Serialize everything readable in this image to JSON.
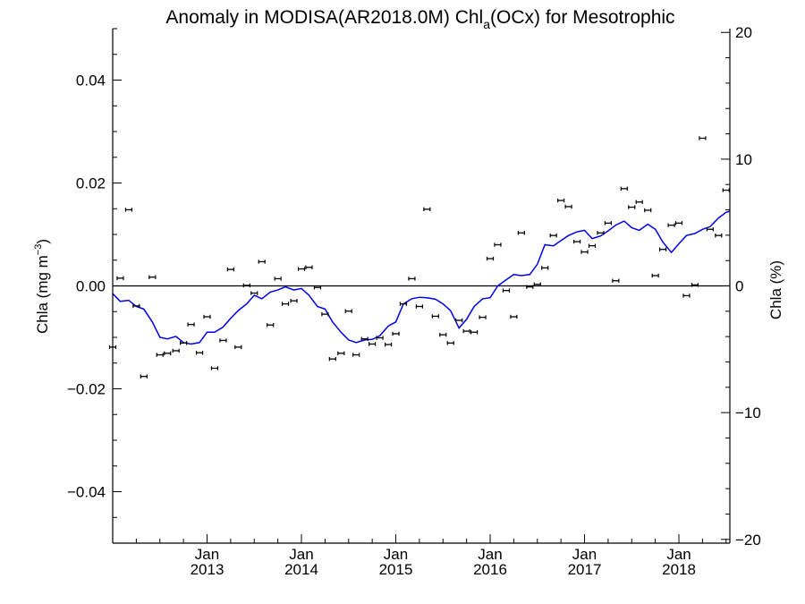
{
  "chart_data": {
    "type": "line",
    "title_main": "Anomaly in MODISA(AR2018.0M) Chl",
    "title_sub": "a",
    "title_tail": "(OCx) for Mesotrophic",
    "ylabel_main": "Chla (mg m",
    "ylabel_sup": "−3",
    "ylabel_close": ")",
    "y2label": "Chla (%)",
    "ylim": [
      -0.05,
      0.05
    ],
    "y2lim": [
      -20.3,
      20.3
    ],
    "yticks": [
      {
        "value": 0.04,
        "label": "0.04"
      },
      {
        "value": 0.02,
        "label": "0.02"
      },
      {
        "value": 0.0,
        "label": "0.00"
      },
      {
        "value": -0.02,
        "label": "−0.02"
      },
      {
        "value": -0.04,
        "label": "−0.04"
      }
    ],
    "y2ticks": [
      {
        "value": 20,
        "label": "20"
      },
      {
        "value": 10,
        "label": "10"
      },
      {
        "value": 0,
        "label": "0"
      },
      {
        "value": -10,
        "label": "−10"
      },
      {
        "value": -20,
        "label": "−20"
      }
    ],
    "xlim": [
      2012.0,
      2018.54
    ],
    "xticks": [
      {
        "value": 2013.0,
        "month": "Jan",
        "year": "2013"
      },
      {
        "value": 2014.0,
        "month": "Jan",
        "year": "2014"
      },
      {
        "value": 2015.0,
        "month": "Jan",
        "year": "2015"
      },
      {
        "value": 2016.0,
        "month": "Jan",
        "year": "2016"
      },
      {
        "value": 2017.0,
        "month": "Jan",
        "year": "2017"
      },
      {
        "value": 2018.0,
        "month": "Jan",
        "year": "2018"
      }
    ],
    "colors": {
      "line": "#0000ee",
      "points": "#000000",
      "zero_line": "#000000"
    },
    "monthly_anomaly": [
      [
        2012.0,
        -0.0119
      ],
      [
        2012.08,
        0.0015
      ],
      [
        2012.17,
        0.0148
      ],
      [
        2012.25,
        -0.0039
      ],
      [
        2012.33,
        -0.0176
      ],
      [
        2012.42,
        0.0017
      ],
      [
        2012.5,
        -0.0134
      ],
      [
        2012.58,
        -0.0131
      ],
      [
        2012.67,
        -0.0126
      ],
      [
        2012.75,
        -0.0111
      ],
      [
        2012.83,
        -0.0075
      ],
      [
        2012.92,
        -0.013
      ],
      [
        2013.0,
        -0.006
      ],
      [
        2013.08,
        -0.016
      ],
      [
        2013.17,
        -0.0106
      ],
      [
        2013.25,
        0.0032
      ],
      [
        2013.33,
        -0.0119
      ],
      [
        2013.42,
        0.0001
      ],
      [
        2013.5,
        -0.0014
      ],
      [
        2013.58,
        0.0047
      ],
      [
        2013.67,
        -0.0076
      ],
      [
        2013.75,
        0.0014
      ],
      [
        2013.83,
        -0.0035
      ],
      [
        2013.92,
        -0.0029
      ],
      [
        2014.0,
        0.0033
      ],
      [
        2014.08,
        0.0036
      ],
      [
        2014.17,
        -0.0003
      ],
      [
        2014.25,
        -0.0055
      ],
      [
        2014.33,
        -0.0142
      ],
      [
        2014.42,
        -0.0131
      ],
      [
        2014.5,
        -0.0049
      ],
      [
        2014.58,
        -0.0134
      ],
      [
        2014.67,
        -0.0103
      ],
      [
        2014.75,
        -0.0113
      ],
      [
        2014.83,
        -0.0101
      ],
      [
        2014.92,
        -0.0114
      ],
      [
        2015.0,
        -0.0093
      ],
      [
        2015.08,
        -0.0035
      ],
      [
        2015.17,
        0.0014
      ],
      [
        2015.25,
        -0.004
      ],
      [
        2015.33,
        0.0149
      ],
      [
        2015.42,
        -0.0059
      ],
      [
        2015.5,
        -0.0095
      ],
      [
        2015.58,
        -0.0111
      ],
      [
        2015.67,
        -0.0067
      ],
      [
        2015.75,
        -0.0088
      ],
      [
        2015.83,
        -0.009
      ],
      [
        2015.92,
        -0.0061
      ],
      [
        2016.0,
        0.0053
      ],
      [
        2016.08,
        0.008
      ],
      [
        2016.17,
        -0.0009
      ],
      [
        2016.25,
        -0.006
      ],
      [
        2016.33,
        0.0103
      ],
      [
        2016.42,
        -0.0002
      ],
      [
        2016.5,
        0.0003
      ],
      [
        2016.58,
        0.0035
      ],
      [
        2016.67,
        0.0098
      ],
      [
        2016.75,
        0.0166
      ],
      [
        2016.83,
        0.0154
      ],
      [
        2016.92,
        0.0086
      ],
      [
        2017.0,
        0.0066
      ],
      [
        2017.08,
        0.0078
      ],
      [
        2017.17,
        0.0103
      ],
      [
        2017.25,
        0.0122
      ],
      [
        2017.33,
        0.001
      ],
      [
        2017.42,
        0.0189
      ],
      [
        2017.5,
        0.0153
      ],
      [
        2017.58,
        0.0163
      ],
      [
        2017.67,
        0.0147
      ],
      [
        2017.75,
        0.002
      ],
      [
        2017.83,
        0.0071
      ],
      [
        2017.92,
        0.0118
      ],
      [
        2018.0,
        0.0122
      ],
      [
        2018.08,
        -0.0019
      ],
      [
        2018.17,
        0.0002
      ],
      [
        2018.25,
        0.0287
      ],
      [
        2018.33,
        0.011
      ],
      [
        2018.42,
        0.0098
      ],
      [
        2018.5,
        0.0186
      ]
    ],
    "running_mean": [
      [
        2012.0,
        -0.0015
      ],
      [
        2012.08,
        -0.003
      ],
      [
        2012.17,
        -0.0028
      ],
      [
        2012.25,
        -0.004
      ],
      [
        2012.33,
        -0.0045
      ],
      [
        2012.42,
        -0.007
      ],
      [
        2012.5,
        -0.01
      ],
      [
        2012.58,
        -0.0103
      ],
      [
        2012.67,
        -0.0098
      ],
      [
        2012.75,
        -0.011
      ],
      [
        2012.83,
        -0.0113
      ],
      [
        2012.92,
        -0.011
      ],
      [
        2013.0,
        -0.009
      ],
      [
        2013.08,
        -0.009
      ],
      [
        2013.17,
        -0.008
      ],
      [
        2013.25,
        -0.0063
      ],
      [
        2013.33,
        -0.0048
      ],
      [
        2013.42,
        -0.0035
      ],
      [
        2013.5,
        -0.0018
      ],
      [
        2013.58,
        -0.0025
      ],
      [
        2013.67,
        -0.0012
      ],
      [
        2013.75,
        -0.0008
      ],
      [
        2013.83,
        -0.0002
      ],
      [
        2013.92,
        -0.0008
      ],
      [
        2014.0,
        -0.0005
      ],
      [
        2014.08,
        -0.0018
      ],
      [
        2014.17,
        -0.004
      ],
      [
        2014.25,
        -0.0045
      ],
      [
        2014.33,
        -0.007
      ],
      [
        2014.42,
        -0.009
      ],
      [
        2014.5,
        -0.0105
      ],
      [
        2014.58,
        -0.011
      ],
      [
        2014.67,
        -0.0105
      ],
      [
        2014.75,
        -0.0104
      ],
      [
        2014.83,
        -0.0097
      ],
      [
        2014.92,
        -0.0078
      ],
      [
        2015.0,
        -0.007
      ],
      [
        2015.08,
        -0.0035
      ],
      [
        2015.17,
        -0.0025
      ],
      [
        2015.25,
        -0.0022
      ],
      [
        2015.33,
        -0.0023
      ],
      [
        2015.42,
        -0.0026
      ],
      [
        2015.5,
        -0.0035
      ],
      [
        2015.58,
        -0.0048
      ],
      [
        2015.67,
        -0.0082
      ],
      [
        2015.75,
        -0.0065
      ],
      [
        2015.83,
        -0.004
      ],
      [
        2015.92,
        -0.0025
      ],
      [
        2016.0,
        -0.0023
      ],
      [
        2016.08,
        0.0
      ],
      [
        2016.17,
        0.0012
      ],
      [
        2016.25,
        0.0022
      ],
      [
        2016.33,
        0.002
      ],
      [
        2016.42,
        0.0022
      ],
      [
        2016.5,
        0.0042
      ],
      [
        2016.58,
        0.008
      ],
      [
        2016.67,
        0.0078
      ],
      [
        2016.75,
        0.0088
      ],
      [
        2016.83,
        0.0098
      ],
      [
        2016.92,
        0.0105
      ],
      [
        2017.0,
        0.0108
      ],
      [
        2017.08,
        0.0092
      ],
      [
        2017.17,
        0.0097
      ],
      [
        2017.25,
        0.0107
      ],
      [
        2017.33,
        0.0118
      ],
      [
        2017.42,
        0.0126
      ],
      [
        2017.5,
        0.0113
      ],
      [
        2017.58,
        0.0108
      ],
      [
        2017.67,
        0.012
      ],
      [
        2017.75,
        0.011
      ],
      [
        2017.83,
        0.0085
      ],
      [
        2017.92,
        0.0065
      ],
      [
        2018.0,
        0.0082
      ],
      [
        2018.08,
        0.0098
      ],
      [
        2018.17,
        0.0102
      ],
      [
        2018.25,
        0.011
      ],
      [
        2018.33,
        0.0115
      ],
      [
        2018.42,
        0.0132
      ],
      [
        2018.5,
        0.0143
      ],
      [
        2018.54,
        0.0145
      ]
    ]
  }
}
